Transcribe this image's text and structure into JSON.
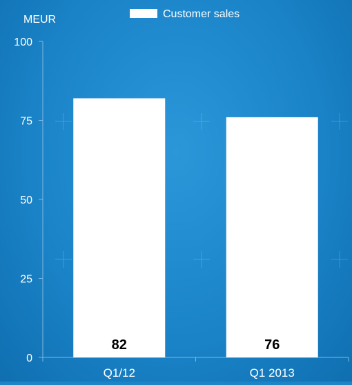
{
  "chart_data": {
    "type": "bar",
    "categories": [
      "Q1/12",
      "Q1 2013"
    ],
    "series": [
      {
        "name": "Customer sales",
        "values": [
          82,
          76
        ]
      }
    ],
    "data_labels": [
      "82",
      "76"
    ],
    "title": "",
    "xlabel": "",
    "ylabel": "MEUR",
    "ylim": [
      0,
      100
    ],
    "yticks": [
      0,
      25,
      50,
      75,
      100
    ],
    "grid": false,
    "legend_position": "top-center",
    "colors": {
      "bar": "#ffffff",
      "background": "#1d84c8",
      "axis": "#7fb8e0",
      "text": "#ffffff",
      "data_label": "#000000"
    }
  }
}
